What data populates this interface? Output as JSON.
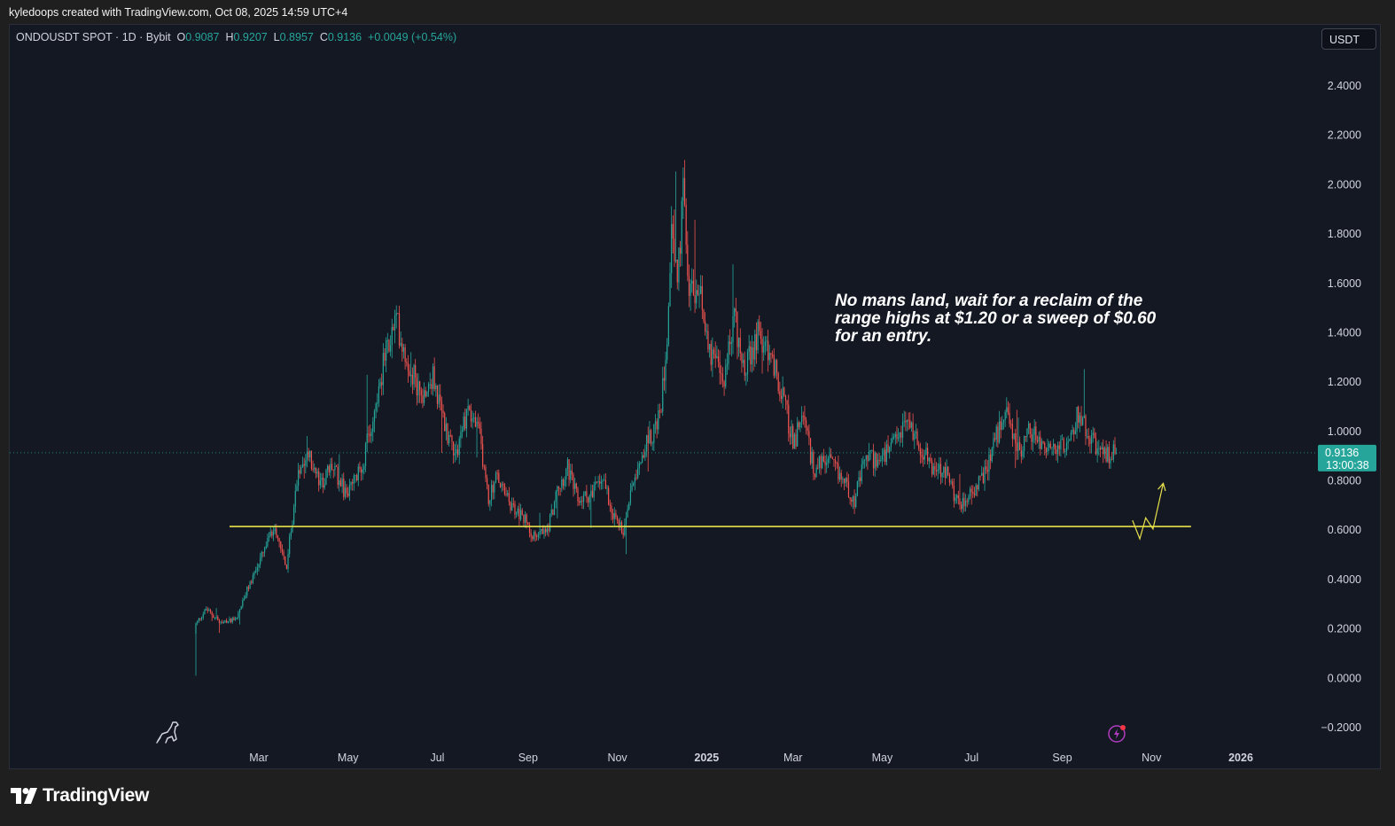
{
  "header": {
    "attribution": "kyledoops created with TradingView.com, Oct 08, 2025 14:59 UTC+4"
  },
  "symbol_bar": {
    "symbol": "ONDOUSDT SPOT · 1D · Bybit",
    "o_label": "O",
    "o_value": "0.9087",
    "h_label": "H",
    "h_value": "0.9207",
    "l_label": "L",
    "l_value": "0.8957",
    "c_label": "C",
    "c_value": "0.9136",
    "change": "+0.0049 (+0.54%)"
  },
  "currency_button": "USDT",
  "annotation": "No mans land, wait for a reclaim of the range highs at $1.20 or a sweep of $0.60 for an entry.",
  "price_label": {
    "price": "0.9136",
    "countdown": "13:00:38",
    "value": 0.9136
  },
  "footer": {
    "brand": "TradingView"
  },
  "colors": {
    "up": "#26a69a",
    "down": "#ef5350",
    "level": "#e8e24a",
    "background": "#141823",
    "price_badge": "#26a69a"
  },
  "icons": [
    "dino-icon",
    "lightning-icon",
    "tradingview-logo-icon"
  ],
  "chart_data": {
    "type": "candlestick",
    "title": "",
    "xlabel": "",
    "ylabel": "",
    "ylim": [
      -0.2,
      2.4
    ],
    "y_ticks": [
      "2.4000",
      "2.2000",
      "2.0000",
      "1.8000",
      "1.6000",
      "1.4000",
      "1.2000",
      "1.0000",
      "0.8000",
      "0.6000",
      "0.4000",
      "0.2000",
      "0.0000",
      "−0.2000"
    ],
    "y_tick_values": [
      2.4,
      2.2,
      2.0,
      1.8,
      1.6,
      1.4,
      1.2,
      1.0,
      0.8,
      0.6,
      0.4,
      0.2,
      0.0,
      -0.2
    ],
    "x_ticks": [
      {
        "label": "Mar",
        "date": "2024-03-01",
        "bold": false
      },
      {
        "label": "May",
        "date": "2024-05-01",
        "bold": false
      },
      {
        "label": "Jul",
        "date": "2024-07-01",
        "bold": false
      },
      {
        "label": "Sep",
        "date": "2024-09-01",
        "bold": false
      },
      {
        "label": "Nov",
        "date": "2024-11-01",
        "bold": false
      },
      {
        "label": "2025",
        "date": "2025-01-01",
        "bold": true
      },
      {
        "label": "Mar",
        "date": "2025-03-01",
        "bold": false
      },
      {
        "label": "May",
        "date": "2025-05-01",
        "bold": false
      },
      {
        "label": "Jul",
        "date": "2025-07-01",
        "bold": false
      },
      {
        "label": "Sep",
        "date": "2025-09-01",
        "bold": false
      },
      {
        "label": "Nov",
        "date": "2025-11-01",
        "bold": false
      },
      {
        "label": "2026",
        "date": "2026-01-01",
        "bold": true
      }
    ],
    "anchors": [
      [
        "2024-01-18",
        0.22
      ],
      [
        "2024-01-25",
        0.28
      ],
      [
        "2024-02-05",
        0.22
      ],
      [
        "2024-02-15",
        0.25
      ],
      [
        "2024-02-25",
        0.4
      ],
      [
        "2024-03-05",
        0.52
      ],
      [
        "2024-03-12",
        0.62
      ],
      [
        "2024-03-20",
        0.45
      ],
      [
        "2024-03-28",
        0.85
      ],
      [
        "2024-04-03",
        0.92
      ],
      [
        "2024-04-12",
        0.78
      ],
      [
        "2024-04-20",
        0.86
      ],
      [
        "2024-04-30",
        0.74
      ],
      [
        "2024-05-10",
        0.85
      ],
      [
        "2024-05-18",
        1.05
      ],
      [
        "2024-05-26",
        1.3
      ],
      [
        "2024-06-03",
        1.45
      ],
      [
        "2024-06-10",
        1.3
      ],
      [
        "2024-06-20",
        1.15
      ],
      [
        "2024-06-28",
        1.22
      ],
      [
        "2024-07-06",
        1.02
      ],
      [
        "2024-07-14",
        0.92
      ],
      [
        "2024-07-22",
        1.1
      ],
      [
        "2024-07-30",
        0.98
      ],
      [
        "2024-08-05",
        0.72
      ],
      [
        "2024-08-10",
        0.82
      ],
      [
        "2024-08-20",
        0.7
      ],
      [
        "2024-08-30",
        0.64
      ],
      [
        "2024-09-06",
        0.57
      ],
      [
        "2024-09-14",
        0.6
      ],
      [
        "2024-09-22",
        0.78
      ],
      [
        "2024-09-28",
        0.85
      ],
      [
        "2024-10-05",
        0.72
      ],
      [
        "2024-10-15",
        0.75
      ],
      [
        "2024-10-22",
        0.82
      ],
      [
        "2024-10-30",
        0.65
      ],
      [
        "2024-11-05",
        0.6
      ],
      [
        "2024-11-12",
        0.82
      ],
      [
        "2024-11-20",
        0.94
      ],
      [
        "2024-11-30",
        1.05
      ],
      [
        "2024-12-05",
        1.4
      ],
      [
        "2024-12-08",
        1.85
      ],
      [
        "2024-12-12",
        1.6
      ],
      [
        "2024-12-16",
        1.95
      ],
      [
        "2024-12-20",
        1.6
      ],
      [
        "2024-12-27",
        1.55
      ],
      [
        "2025-01-05",
        1.3
      ],
      [
        "2025-01-12",
        1.2
      ],
      [
        "2025-01-20",
        1.45
      ],
      [
        "2025-01-28",
        1.25
      ],
      [
        "2025-02-05",
        1.4
      ],
      [
        "2025-02-14",
        1.3
      ],
      [
        "2025-02-22",
        1.15
      ],
      [
        "2025-03-01",
        0.95
      ],
      [
        "2025-03-08",
        1.05
      ],
      [
        "2025-03-15",
        0.85
      ],
      [
        "2025-03-25",
        0.88
      ],
      [
        "2025-04-05",
        0.8
      ],
      [
        "2025-04-12",
        0.72
      ],
      [
        "2025-04-20",
        0.9
      ],
      [
        "2025-04-30",
        0.88
      ],
      [
        "2025-05-10",
        0.95
      ],
      [
        "2025-05-18",
        1.05
      ],
      [
        "2025-05-26",
        0.95
      ],
      [
        "2025-06-05",
        0.85
      ],
      [
        "2025-06-15",
        0.82
      ],
      [
        "2025-06-22",
        0.7
      ],
      [
        "2025-06-30",
        0.75
      ],
      [
        "2025-07-08",
        0.8
      ],
      [
        "2025-07-16",
        0.95
      ],
      [
        "2025-07-25",
        1.08
      ],
      [
        "2025-08-02",
        0.92
      ],
      [
        "2025-08-10",
        1.0
      ],
      [
        "2025-08-18",
        0.95
      ],
      [
        "2025-08-28",
        0.92
      ],
      [
        "2025-09-06",
        0.95
      ],
      [
        "2025-09-12",
        1.08
      ],
      [
        "2025-09-20",
        0.98
      ],
      [
        "2025-09-28",
        0.9
      ],
      [
        "2025-10-08",
        0.9136
      ]
    ],
    "horizontal_level": {
      "value": 0.615,
      "from": "2024-02-10",
      "to": "2025-11-28"
    },
    "projection_path": [
      [
        "2025-10-19",
        0.64
      ],
      [
        "2025-10-24",
        0.565
      ],
      [
        "2025-10-28",
        0.65
      ],
      [
        "2025-11-02",
        0.605
      ],
      [
        "2025-11-09",
        0.79
      ]
    ]
  }
}
